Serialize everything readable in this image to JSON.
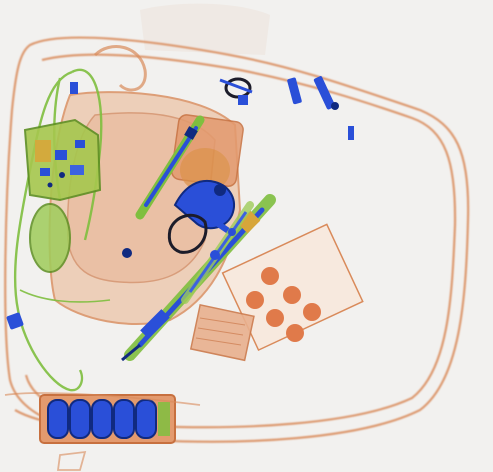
{
  "image": {
    "kind": "x-ray baggage scan",
    "background": "#f2f1ef",
    "palette": {
      "organic": "#d98a5a",
      "organic_light": "#e9b08e",
      "inorganic": "#7fbf3f",
      "inorganic_dark": "#4f8f2a",
      "metal": "#2a4fd8",
      "metal_dark": "#102a80",
      "dense": "#1c1c2a"
    },
    "objects": [
      {
        "name": "bag-outline",
        "material": "organic"
      },
      {
        "name": "wire-loop",
        "material": "inorganic"
      },
      {
        "name": "circuit-board",
        "material": "inorganic"
      },
      {
        "name": "oval-pouch",
        "material": "inorganic"
      },
      {
        "name": "pouch-container",
        "material": "organic"
      },
      {
        "name": "inner-box",
        "material": "organic"
      },
      {
        "name": "scissors-tool",
        "material": "metal"
      },
      {
        "name": "pen-tool",
        "material": "metal"
      },
      {
        "name": "long-screwdriver",
        "material": "metal"
      },
      {
        "name": "dot-blister-pack",
        "material": "organic"
      },
      {
        "name": "fabric-patch",
        "material": "organic"
      },
      {
        "name": "battery-pack",
        "material": "metal"
      },
      {
        "name": "zipper-pulls",
        "material": "metal"
      }
    ]
  }
}
